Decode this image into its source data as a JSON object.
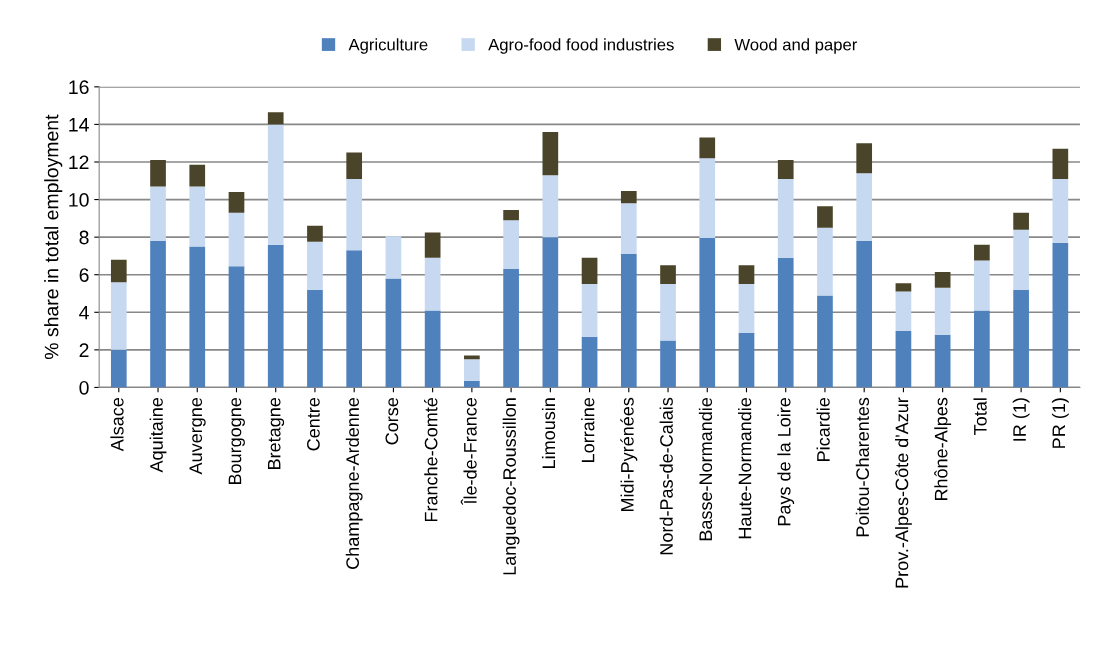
{
  "chart_data": {
    "type": "bar",
    "stacked": true,
    "ylabel": "% share in total employment",
    "ylim": [
      0,
      16
    ],
    "yticks": [
      0,
      2,
      4,
      6,
      8,
      10,
      12,
      14,
      16
    ],
    "grid": "y",
    "legend": "top",
    "categories": [
      "Alsace",
      "Aquitaine",
      "Auvergne",
      "Bourgogne",
      "Bretagne",
      "Centre",
      "Champagne-Ardenne",
      "Corse",
      "Franche-Comté",
      "Île-de-France",
      "Languedoc-Roussillon",
      "Limousin",
      "Lorraine",
      "Midi-Pyrénées",
      "Nord-Pas-de-Calais",
      "Basse-Normandie",
      "Haute-Normandie",
      "Pays de la Loire",
      "Picardie",
      "Poitou-Charentes",
      "Prov.-Alpes-Côte d'Azur",
      "Rhône-Alpes",
      "Total",
      "IR (1)",
      "PR (1)"
    ],
    "series": [
      {
        "name": "Agriculture",
        "color": "#4f81bd",
        "values": [
          2.0,
          7.8,
          7.5,
          6.45,
          7.6,
          5.2,
          7.3,
          5.8,
          4.1,
          0.35,
          6.3,
          8.0,
          2.7,
          7.1,
          2.5,
          7.95,
          2.9,
          6.9,
          4.9,
          7.8,
          3.0,
          2.8,
          4.1,
          5.2,
          7.7
        ]
      },
      {
        "name": "Agro-food food industries",
        "color": "#c6d9f0",
        "values": [
          3.6,
          2.9,
          3.2,
          2.85,
          6.4,
          2.55,
          3.8,
          2.25,
          2.8,
          1.15,
          2.6,
          3.3,
          2.8,
          2.7,
          3.0,
          4.25,
          2.6,
          4.2,
          3.6,
          3.6,
          2.1,
          2.5,
          2.65,
          3.2,
          3.4
        ]
      },
      {
        "name": "Wood and paper",
        "color": "#4a452a",
        "values": [
          1.2,
          1.4,
          1.15,
          1.1,
          0.65,
          0.85,
          1.4,
          0,
          1.35,
          0.2,
          0.55,
          2.3,
          1.4,
          0.65,
          1.0,
          1.1,
          1.0,
          1.0,
          1.15,
          1.6,
          0.45,
          0.85,
          0.85,
          0.9,
          1.6
        ]
      }
    ]
  }
}
